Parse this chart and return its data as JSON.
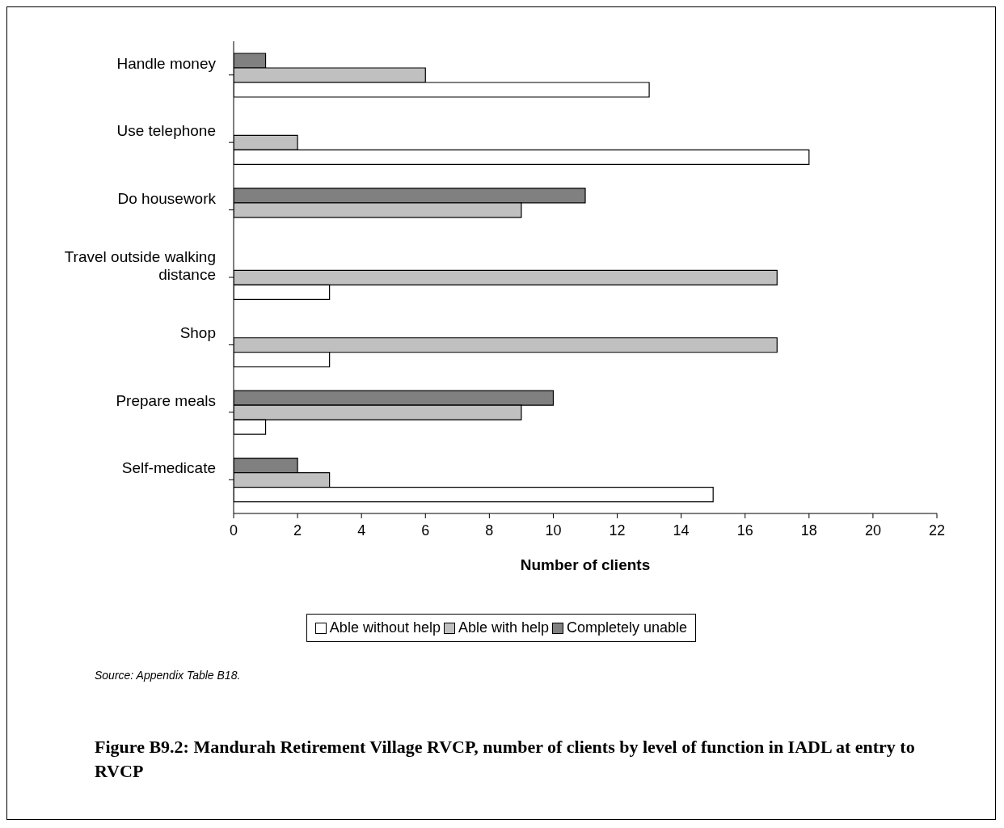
{
  "chart_data": {
    "type": "bar",
    "orientation": "horizontal",
    "title": "Figure B9.2: Mandurah Retirement Village RVCP, number of clients by level of function in IADL at entry to RVCP",
    "xlabel": "Number of clients",
    "categories": [
      "Handle money",
      "Use telephone",
      "Do housework",
      "Travel outside walking distance",
      "Shop",
      "Prepare meals",
      "Self-medicate"
    ],
    "series": [
      {
        "name": "Able without help",
        "color": "#ffffff",
        "values": [
          13,
          18,
          0,
          3,
          3,
          1,
          15
        ]
      },
      {
        "name": "Able with help",
        "color": "#c0c0c0",
        "values": [
          6,
          2,
          9,
          17,
          17,
          9,
          3
        ]
      },
      {
        "name": "Completely unable",
        "color": "#808080",
        "values": [
          1,
          0,
          11,
          0,
          0,
          10,
          2
        ]
      }
    ],
    "xlim": [
      0,
      22
    ],
    "xticks": [
      0,
      2,
      4,
      6,
      8,
      10,
      12,
      14,
      16,
      18,
      20,
      22
    ],
    "legend": "bottom",
    "annotations": [
      "Source: Appendix Table B18."
    ]
  }
}
